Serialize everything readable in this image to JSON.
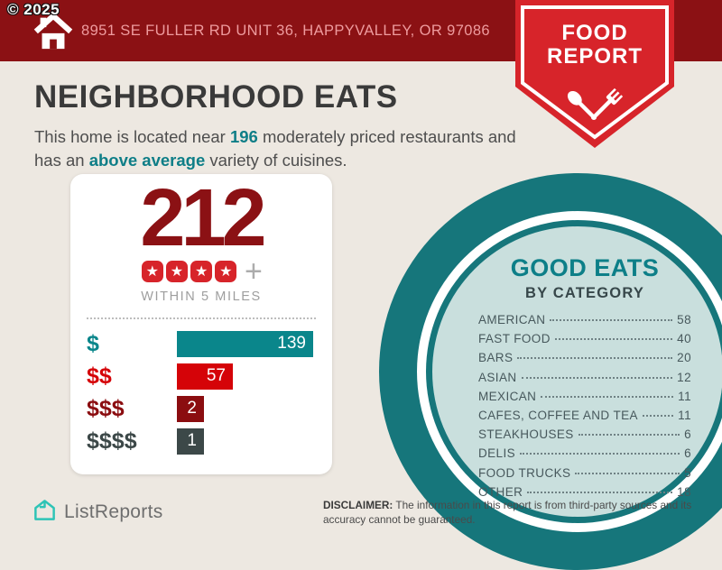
{
  "copyright": "© 2025",
  "header": {
    "address": "8951 SE FULLER RD UNIT 36, HAPPYVALLEY, OR 97086",
    "badge": {
      "line1": "FOOD",
      "line2": "REPORT"
    }
  },
  "main": {
    "title": "NEIGHBORHOOD EATS",
    "subtitle": {
      "pre": "This home is located near ",
      "count": "196",
      "mid": " moderately priced restaurants and has an ",
      "highlight": "above average",
      "post": " variety of cuisines."
    }
  },
  "summary_card": {
    "total": "212",
    "star_count": 4,
    "plus": "+",
    "caption": "WITHIN 5 MILES"
  },
  "chart_data": {
    "type": "bar",
    "title": "",
    "xlabel": "",
    "ylabel": "",
    "categories": [
      "$",
      "$$",
      "$$$",
      "$$$$"
    ],
    "values": [
      139,
      57,
      2,
      1
    ],
    "bar_colors": [
      "#0A868B",
      "#D50308",
      "#8B0D10",
      "#3C4848"
    ],
    "value_label_position": "inside-right",
    "grid": false,
    "legend": false
  },
  "good_eats": {
    "title": "GOOD EATS",
    "subtitle": "BY CATEGORY",
    "items": [
      {
        "label": "AMERICAN",
        "value": "58"
      },
      {
        "label": "FAST FOOD",
        "value": "40"
      },
      {
        "label": "BARS",
        "value": "20"
      },
      {
        "label": "ASIAN",
        "value": "12"
      },
      {
        "label": "MEXICAN",
        "value": "11"
      },
      {
        "label": "CAFES, COFFEE AND TEA",
        "value": "11"
      },
      {
        "label": "STEAKHOUSES",
        "value": "6"
      },
      {
        "label": "DELIS",
        "value": "6"
      },
      {
        "label": "FOOD TRUCKS",
        "value": "5"
      },
      {
        "label": "OTHER",
        "value": "18"
      }
    ]
  },
  "footer": {
    "brand": "ListReports",
    "disclaimer_label": "DISCLAIMER:",
    "disclaimer_text": " The information in this report is from third-party sources and its accuracy cannot be guaranteed."
  },
  "icons": {
    "star": "★",
    "home": "home-icon",
    "utensils": "spoon-fork-crossed-icon",
    "brand": "listreports-house-icon"
  },
  "colors": {
    "header_bg": "#8B1114",
    "address_text": "#EE9B9E",
    "badge_red": "#D7242A",
    "background": "#EDE8E1",
    "accent_teal": "#0E7E87",
    "big_number_red": "#8B1114",
    "ring_dark_teal": "#16767B",
    "circle_fill": "#C9DFDD",
    "star_red": "#D7242A"
  }
}
